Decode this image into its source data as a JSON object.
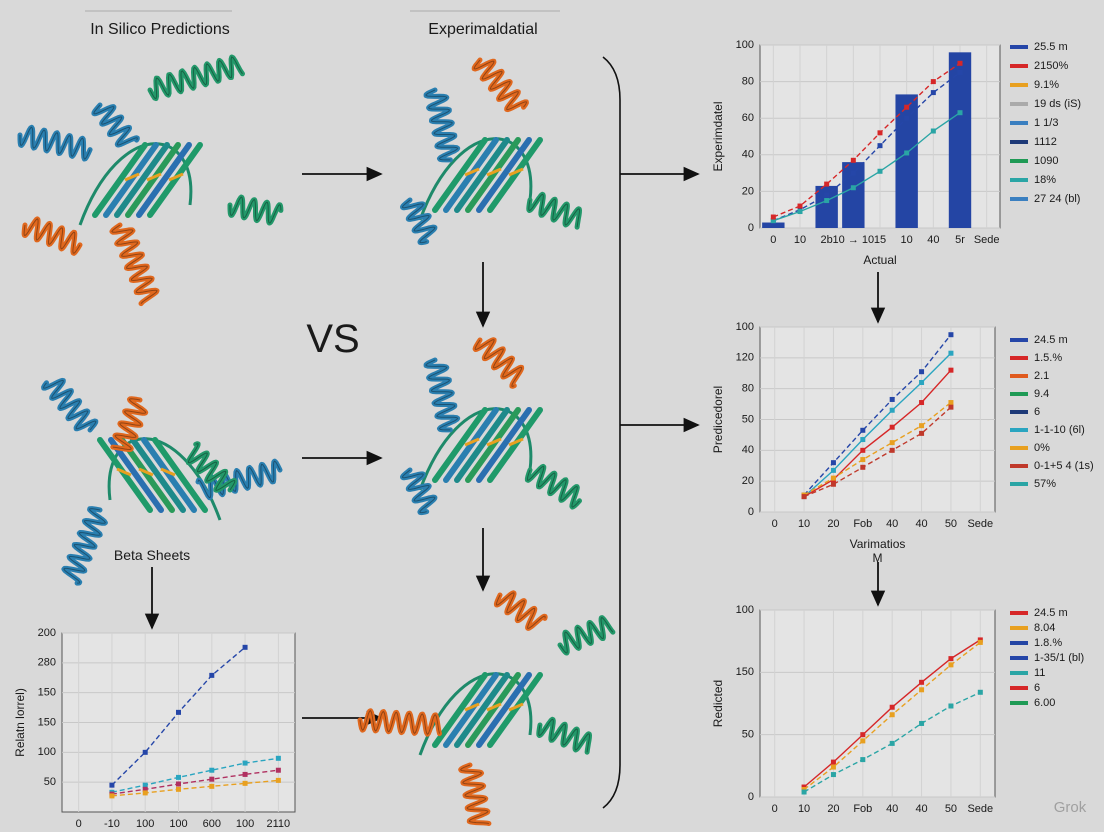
{
  "diagram": {
    "left_title": "In Silico Predictions",
    "mid_title": "Experimaldatial",
    "vs": "VS",
    "beta_label": "Beta Sheets",
    "watermark": "Grok"
  },
  "chart_data": [
    {
      "type": "bar",
      "ylabel": "Experimdatel",
      "xlabel": "Actual",
      "categories": [
        "0",
        "10",
        "2b",
        "10 → 10",
        "15",
        "10",
        "40",
        "5r",
        "Sede"
      ],
      "values": [
        3,
        null,
        23,
        36,
        null,
        73,
        null,
        96,
        null
      ],
      "color": "#2445a4",
      "ylim": [
        0,
        100
      ],
      "yticks": [
        0,
        20,
        40,
        60,
        80,
        100
      ],
      "series": [
        {
          "color": "#2546a8",
          "dash": true,
          "values": [
            4,
            10,
            18,
            30,
            45,
            60,
            74,
            85,
            null
          ]
        },
        {
          "color": "#2aa5a5",
          "dash": false,
          "values": [
            4,
            9,
            15,
            22,
            31,
            41,
            53,
            63,
            null
          ]
        },
        {
          "color": "#d62728",
          "dash": true,
          "values": [
            6,
            12,
            24,
            37,
            52,
            66,
            80,
            90,
            null
          ]
        }
      ],
      "legend": [
        {
          "label": "25.5 m",
          "color": "#2546a8"
        },
        {
          "label": "2150%",
          "color": "#d62728"
        },
        {
          "label": "9.1%",
          "color": "#e8a020"
        },
        {
          "label": "19 ds (iS)",
          "color": "#aaaaaa"
        },
        {
          "label": "1 1/3",
          "color": "#3a7fc0"
        },
        {
          "label": "1112",
          "color": "#1e3a78"
        },
        {
          "label": "1090",
          "color": "#1f9a55"
        },
        {
          "label": "18%",
          "color": "#2aa5a5"
        },
        {
          "label": "27 24 (bl)",
          "color": "#3a7fc0"
        }
      ]
    },
    {
      "type": "line",
      "ylabel": "Predicedorel",
      "xlabel": "Varimatios",
      "xlabel_unit": "M",
      "categories": [
        "0",
        "10",
        "20",
        "Fob",
        "40",
        "40",
        "50",
        "Sede"
      ],
      "ylim": [
        0,
        120
      ],
      "yticks": [
        0,
        20,
        40,
        {
          "value": 60,
          "label": "50"
        },
        80,
        {
          "value": 100,
          "label": "120"
        },
        {
          "value": 120,
          "label": "100"
        }
      ],
      "series": [
        {
          "color": "#2546a8",
          "dash": true,
          "values": [
            null,
            11,
            32,
            53,
            73,
            91,
            115,
            null
          ]
        },
        {
          "color": "#2aa5c0",
          "dash": false,
          "values": [
            null,
            10,
            27,
            47,
            66,
            84,
            103,
            null
          ]
        },
        {
          "color": "#d62728",
          "dash": false,
          "values": [
            null,
            10,
            21,
            40,
            55,
            71,
            92,
            null
          ]
        },
        {
          "color": "#e8a020",
          "dash": true,
          "values": [
            null,
            11,
            22,
            34,
            45,
            56,
            71,
            null
          ]
        },
        {
          "color": "#c0392b",
          "dash": true,
          "values": [
            null,
            10,
            18,
            29,
            40,
            51,
            68,
            null
          ]
        }
      ],
      "legend": [
        {
          "label": "24.5 m",
          "color": "#2546a8"
        },
        {
          "label": "1.5.%",
          "color": "#d62728"
        },
        {
          "label": "2.1",
          "color": "#e05a1e"
        },
        {
          "label": "9.4",
          "color": "#1f9a55"
        },
        {
          "label": "6",
          "color": "#1e3a78"
        },
        {
          "label": "1-1-10 (6l)",
          "color": "#2aa5c0"
        },
        {
          "label": "0%",
          "color": "#e8a020"
        },
        {
          "label": "0-1+5 4 (1s)",
          "color": "#c0392b"
        },
        {
          "label": "57%",
          "color": "#2aa5a5"
        }
      ]
    },
    {
      "type": "line",
      "ylabel": "Redicted",
      "categories": [
        "0",
        "10",
        "20",
        "Fob",
        "40",
        "40",
        "50",
        "Sede"
      ],
      "ylim": [
        0,
        150
      ],
      "yticks": [
        0,
        50,
        {
          "value": 100,
          "label": "150"
        },
        {
          "value": 150,
          "label": "100"
        }
      ],
      "series": [
        {
          "color": "#d62728",
          "dash": false,
          "values": [
            null,
            8,
            28,
            50,
            72,
            92,
            111,
            126
          ]
        },
        {
          "color": "#e8a020",
          "dash": true,
          "values": [
            null,
            6,
            24,
            45,
            66,
            86,
            106,
            124
          ]
        },
        {
          "color": "#2aa5a5",
          "dash": true,
          "values": [
            null,
            4,
            18,
            30,
            43,
            59,
            73,
            84
          ]
        }
      ],
      "legend": [
        {
          "label": "24.5 m",
          "color": "#d62728"
        },
        {
          "label": "8.04",
          "color": "#e8a020"
        },
        {
          "label": "1.8.%",
          "color": "#2445a4"
        },
        {
          "label": "1-35/1 (bl)",
          "color": "#2546a8"
        },
        {
          "label": "11",
          "color": "#2aa5a5"
        },
        {
          "label": "6",
          "color": "#d62728"
        },
        {
          "label": "6.00",
          "color": "#1f9a55"
        }
      ]
    },
    {
      "type": "line",
      "ylabel": "Relatn lorrel)",
      "categories": [
        "0",
        "-10",
        "100",
        "100",
        "600",
        "100",
        "2110"
      ],
      "ylim": [
        0,
        300
      ],
      "yticks": [
        50,
        100,
        150,
        {
          "value": 200,
          "label": "150"
        },
        {
          "value": 250,
          "label": "280"
        },
        {
          "value": 300,
          "label": "200"
        }
      ],
      "series": [
        {
          "color": "#2546a8",
          "dash": true,
          "values": [
            null,
            45,
            100,
            167,
            229,
            276,
            null
          ]
        },
        {
          "color": "#2aa5c0",
          "dash": true,
          "values": [
            null,
            33,
            45,
            58,
            70,
            82,
            90
          ]
        },
        {
          "color": "#b03060",
          "dash": true,
          "values": [
            null,
            30,
            38,
            47,
            55,
            63,
            70
          ]
        },
        {
          "color": "#e8a020",
          "dash": true,
          "values": [
            null,
            27,
            32,
            38,
            43,
            48,
            53
          ]
        }
      ]
    }
  ]
}
